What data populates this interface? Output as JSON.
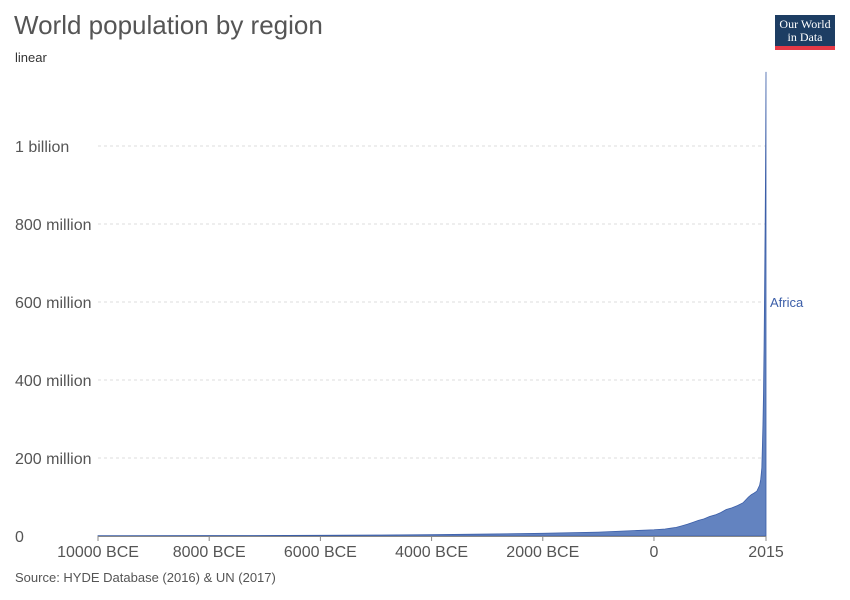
{
  "header": {
    "title": "World population by region",
    "subtitle": "linear"
  },
  "logo": {
    "line1": "Our World",
    "line2": "in Data"
  },
  "footer": {
    "source": "Source: HYDE Database (2016) & UN (2017)"
  },
  "colors": {
    "africa_fill": "#6383c0",
    "africa_line": "#3b5ea8",
    "africa_label": "#3b5ea8",
    "grid": "#dddddd",
    "axis": "#888888"
  },
  "chart_data": {
    "type": "area",
    "title": "World population by region",
    "subtitle": "linear",
    "xlabel": "",
    "ylabel": "",
    "grid": true,
    "xlim": [
      -10000,
      2015
    ],
    "ylim": [
      0,
      1200000000
    ],
    "x_ticks": [
      {
        "value": -10000,
        "label": "10000 BCE"
      },
      {
        "value": -8000,
        "label": "8000 BCE"
      },
      {
        "value": -6000,
        "label": "6000 BCE"
      },
      {
        "value": -4000,
        "label": "4000 BCE"
      },
      {
        "value": -2000,
        "label": "2000 BCE"
      },
      {
        "value": 0,
        "label": "0"
      },
      {
        "value": 2015,
        "label": "2015"
      }
    ],
    "y_ticks": [
      {
        "value": 0,
        "label": "0"
      },
      {
        "value": 200000000,
        "label": "200 million"
      },
      {
        "value": 400000000,
        "label": "400 million"
      },
      {
        "value": 600000000,
        "label": "600 million"
      },
      {
        "value": 800000000,
        "label": "800 million"
      },
      {
        "value": 1000000000,
        "label": "1 billion"
      }
    ],
    "series": [
      {
        "name": "Africa",
        "x": [
          -10000,
          -8000,
          -6000,
          -5000,
          -4000,
          -3000,
          -2000,
          -1000,
          0,
          100,
          200,
          300,
          400,
          500,
          600,
          700,
          800,
          900,
          1000,
          1100,
          1200,
          1300,
          1400,
          1500,
          1600,
          1700,
          1750,
          1800,
          1850,
          1900,
          1920,
          1940,
          1950,
          1960,
          1970,
          1980,
          1990,
          2000,
          2005,
          2010,
          2015
        ],
        "values": [
          800000,
          1100000,
          1700000,
          2500000,
          3500000,
          5000000,
          7000000,
          10000000,
          16000000,
          17000000,
          18000000,
          20000000,
          22000000,
          26000000,
          30000000,
          35000000,
          40000000,
          44000000,
          50000000,
          54000000,
          60000000,
          68000000,
          72000000,
          78000000,
          85000000,
          100000000,
          106000000,
          110000000,
          115000000,
          130000000,
          145000000,
          175000000,
          230000000,
          285000000,
          365000000,
          480000000,
          635000000,
          810000000,
          910000000,
          1040000000,
          1190000000
        ]
      }
    ]
  }
}
